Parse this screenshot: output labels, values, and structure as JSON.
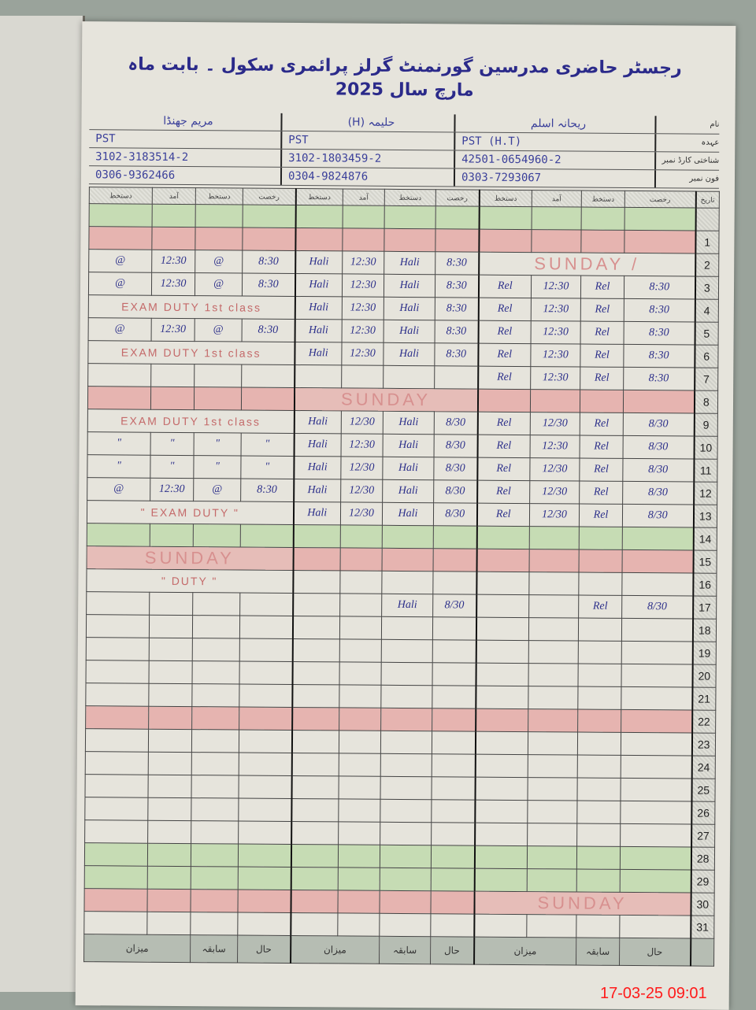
{
  "title": "رجسٹر حاضری مدرسین گورنمنٹ گرلز پرائمری سکول ۔ بابت ماہ مارچ سال 2025",
  "header_labels": [
    "نام",
    "عہدہ",
    "شناختی کارڈ نمبر",
    "فون نمبر"
  ],
  "teachers": [
    {
      "name": "مریم جھنڈا",
      "designation": "PST",
      "cnic": "3102-3183514-2",
      "phone": "0306-9362466"
    },
    {
      "name": "حلیمہ (H)",
      "designation": "PST",
      "cnic": "3102-1803459-2",
      "phone": "0304-9824876"
    },
    {
      "name": "ریحانہ اسلم",
      "designation": "PST (H.T)",
      "cnic": "42501-0654960-2",
      "phone": "0303-7293067"
    }
  ],
  "column_headers": [
    "دستخط",
    "آمد",
    "دستخط",
    "رخصت"
  ],
  "day_header": "تاریخ",
  "rows": [
    {
      "day": "1",
      "shade": "red",
      "a": [
        "",
        "",
        "",
        ""
      ],
      "b": [
        "",
        "",
        "",
        ""
      ],
      "c": [
        "",
        "",
        "",
        ""
      ]
    },
    {
      "day": "2",
      "shade": "",
      "a": [
        "@",
        "12:30",
        "@",
        "8:30"
      ],
      "b": [
        "Hali",
        "12:30",
        "Hali",
        "8:30"
      ],
      "c_note": "SUNDAY /"
    },
    {
      "day": "3",
      "shade": "",
      "a": [
        "@",
        "12:30",
        "@",
        "8:30"
      ],
      "b": [
        "Hali",
        "12:30",
        "Hali",
        "8:30"
      ],
      "c": [
        "Rel",
        "12:30",
        "Rel",
        "8:30"
      ]
    },
    {
      "day": "4",
      "shade": "",
      "a_note": "EXAM DUTY 1st class",
      "b": [
        "Hali",
        "12:30",
        "Hali",
        "8:30"
      ],
      "c": [
        "Rel",
        "12:30",
        "Rel",
        "8:30"
      ]
    },
    {
      "day": "5",
      "shade": "",
      "a": [
        "@",
        "12:30",
        "@",
        "8:30"
      ],
      "b": [
        "Hali",
        "12:30",
        "Hali",
        "8:30"
      ],
      "c": [
        "Rel",
        "12:30",
        "Rel",
        "8:30"
      ]
    },
    {
      "day": "6",
      "shade": "",
      "a_note": "EXAM DUTY 1st class",
      "b": [
        "Hali",
        "12:30",
        "Hali",
        "8:30"
      ],
      "c": [
        "Rel",
        "12:30",
        "Rel",
        "8:30"
      ]
    },
    {
      "day": "7",
      "shade": "",
      "a": [
        "",
        "",
        "",
        ""
      ],
      "b": [
        "",
        "",
        "",
        ""
      ],
      "c": [
        "Rel",
        "12:30",
        "Rel",
        "8:30"
      ]
    },
    {
      "day": "8",
      "shade": "red",
      "b_note": "SUNDAY"
    },
    {
      "day": "9",
      "shade": "",
      "a_note": "EXAM DUTY 1st class",
      "b": [
        "Hali",
        "12/30",
        "Hali",
        "8/30"
      ],
      "c": [
        "Rel",
        "12/30",
        "Rel",
        "8/30"
      ]
    },
    {
      "day": "10",
      "shade": "",
      "a": [
        "\"",
        "\"",
        "\"",
        "\""
      ],
      "b": [
        "Hali",
        "12:30",
        "Hali",
        "8/30"
      ],
      "c": [
        "Rel",
        "12:30",
        "Rel",
        "8/30"
      ]
    },
    {
      "day": "11",
      "shade": "",
      "a": [
        "\"",
        "\"",
        "\"",
        "\""
      ],
      "b": [
        "Hali",
        "12/30",
        "Hali",
        "8/30"
      ],
      "c": [
        "Rel",
        "12/30",
        "Rel",
        "8/30"
      ]
    },
    {
      "day": "12",
      "shade": "",
      "a": [
        "@",
        "12:30",
        "@",
        "8:30"
      ],
      "b": [
        "Hali",
        "12/30",
        "Hali",
        "8/30"
      ],
      "c": [
        "Rel",
        "12/30",
        "Rel",
        "8/30"
      ]
    },
    {
      "day": "13",
      "shade": "",
      "a_note": "\" EXAM DUTY \"",
      "b": [
        "Hali",
        "12/30",
        "Hali",
        "8/30"
      ],
      "c": [
        "Rel",
        "12/30",
        "Rel",
        "8/30"
      ]
    },
    {
      "day": "14",
      "shade": "green"
    },
    {
      "day": "15",
      "shade": "red",
      "a_note": "SUNDAY"
    },
    {
      "day": "16",
      "shade": "",
      "a_note": "\" DUTY \""
    },
    {
      "day": "17",
      "shade": "",
      "b": [
        "",
        "",
        "Hali",
        "8/30"
      ],
      "c": [
        "",
        "",
        "Rel",
        "8/30"
      ]
    },
    {
      "day": "18",
      "shade": ""
    },
    {
      "day": "19",
      "shade": ""
    },
    {
      "day": "20",
      "shade": ""
    },
    {
      "day": "21",
      "shade": ""
    },
    {
      "day": "22",
      "shade": "red"
    },
    {
      "day": "23",
      "shade": ""
    },
    {
      "day": "24",
      "shade": ""
    },
    {
      "day": "25",
      "shade": ""
    },
    {
      "day": "26",
      "shade": ""
    },
    {
      "day": "27",
      "shade": ""
    },
    {
      "day": "28",
      "shade": "green"
    },
    {
      "day": "29",
      "shade": "green"
    },
    {
      "day": "30",
      "shade": "red",
      "c_note": "SUNDAY"
    },
    {
      "day": "31",
      "shade": ""
    }
  ],
  "footer_labels": [
    "میزان",
    "سابقہ",
    "حال"
  ],
  "timestamp": "17-03-25  09:01",
  "colors": {
    "ink_blue": "#2c2f8a",
    "pencil_red": "#c46a6a",
    "stripe_red": "#e6b4b0",
    "stripe_green": "#c6dcb4",
    "stamp_red": "#ff1a1a"
  }
}
